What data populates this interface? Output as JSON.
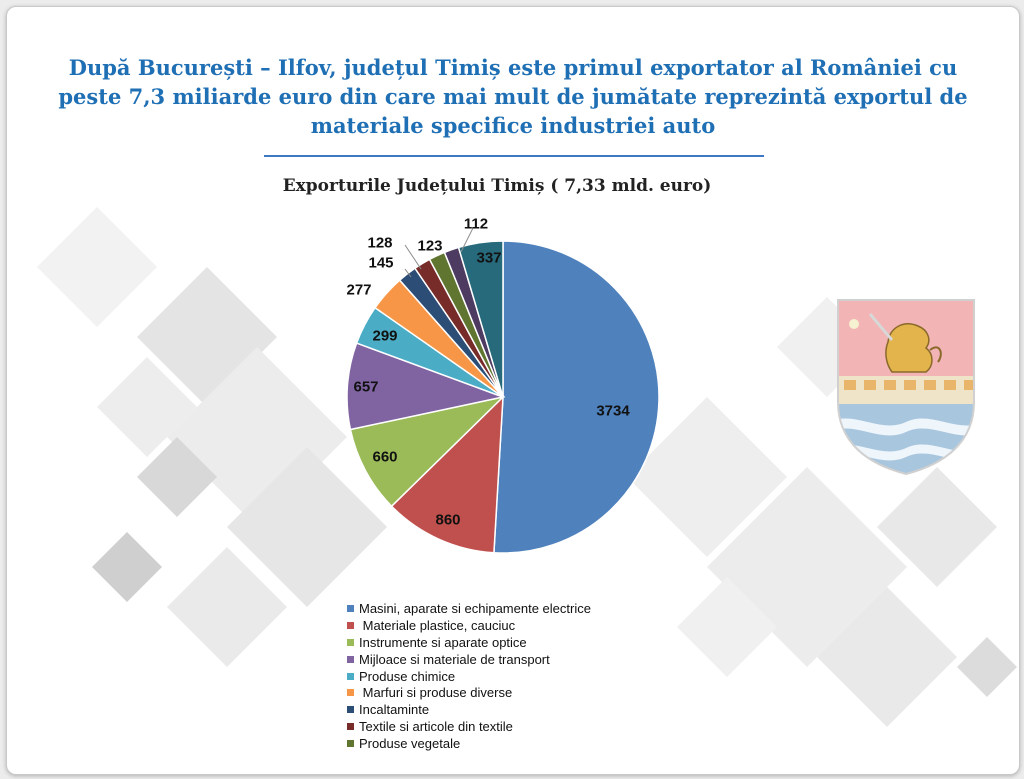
{
  "headline": "După București – Ilfov, județul Timiș este primul exportator al României cu peste 7,3 miliarde euro din care mai mult de jumătate reprezintă exportul de materiale specifice industriei auto",
  "crest_icon": "timis-county-coat-of-arms",
  "chart_data": {
    "type": "pie",
    "title": "Exporturile Județului Timiș ( 7,33 mld. euro)",
    "slices": [
      {
        "label": "Masini, aparate si echipamente electrice",
        "value": 3734,
        "color": "#4f81bd"
      },
      {
        "label": " Materiale plastice, cauciuc",
        "value": 860,
        "color": "#c0504d"
      },
      {
        "label": "Instrumente si aparate optice",
        "value": 660,
        "color": "#9bbb59"
      },
      {
        "label": "Mijloace si materiale de transport",
        "value": 657,
        "color": "#8064a2"
      },
      {
        "label": "Produse chimice",
        "value": 299,
        "color": "#4bacc6"
      },
      {
        "label": " Marfuri si produse diverse",
        "value": 277,
        "color": "#f79646"
      },
      {
        "label": "Incaltaminte",
        "value": 145,
        "color": "#2c4d75"
      },
      {
        "label": "Textile si articole din textile",
        "value": 128,
        "color": "#772c2a"
      },
      {
        "label": "Produse vegetale",
        "value": 123,
        "color": "#5f7530"
      },
      {
        "label": "",
        "value": 112,
        "color": "#4d3b62"
      },
      {
        "label": "",
        "value": 337,
        "color": "#276a7c"
      }
    ]
  }
}
